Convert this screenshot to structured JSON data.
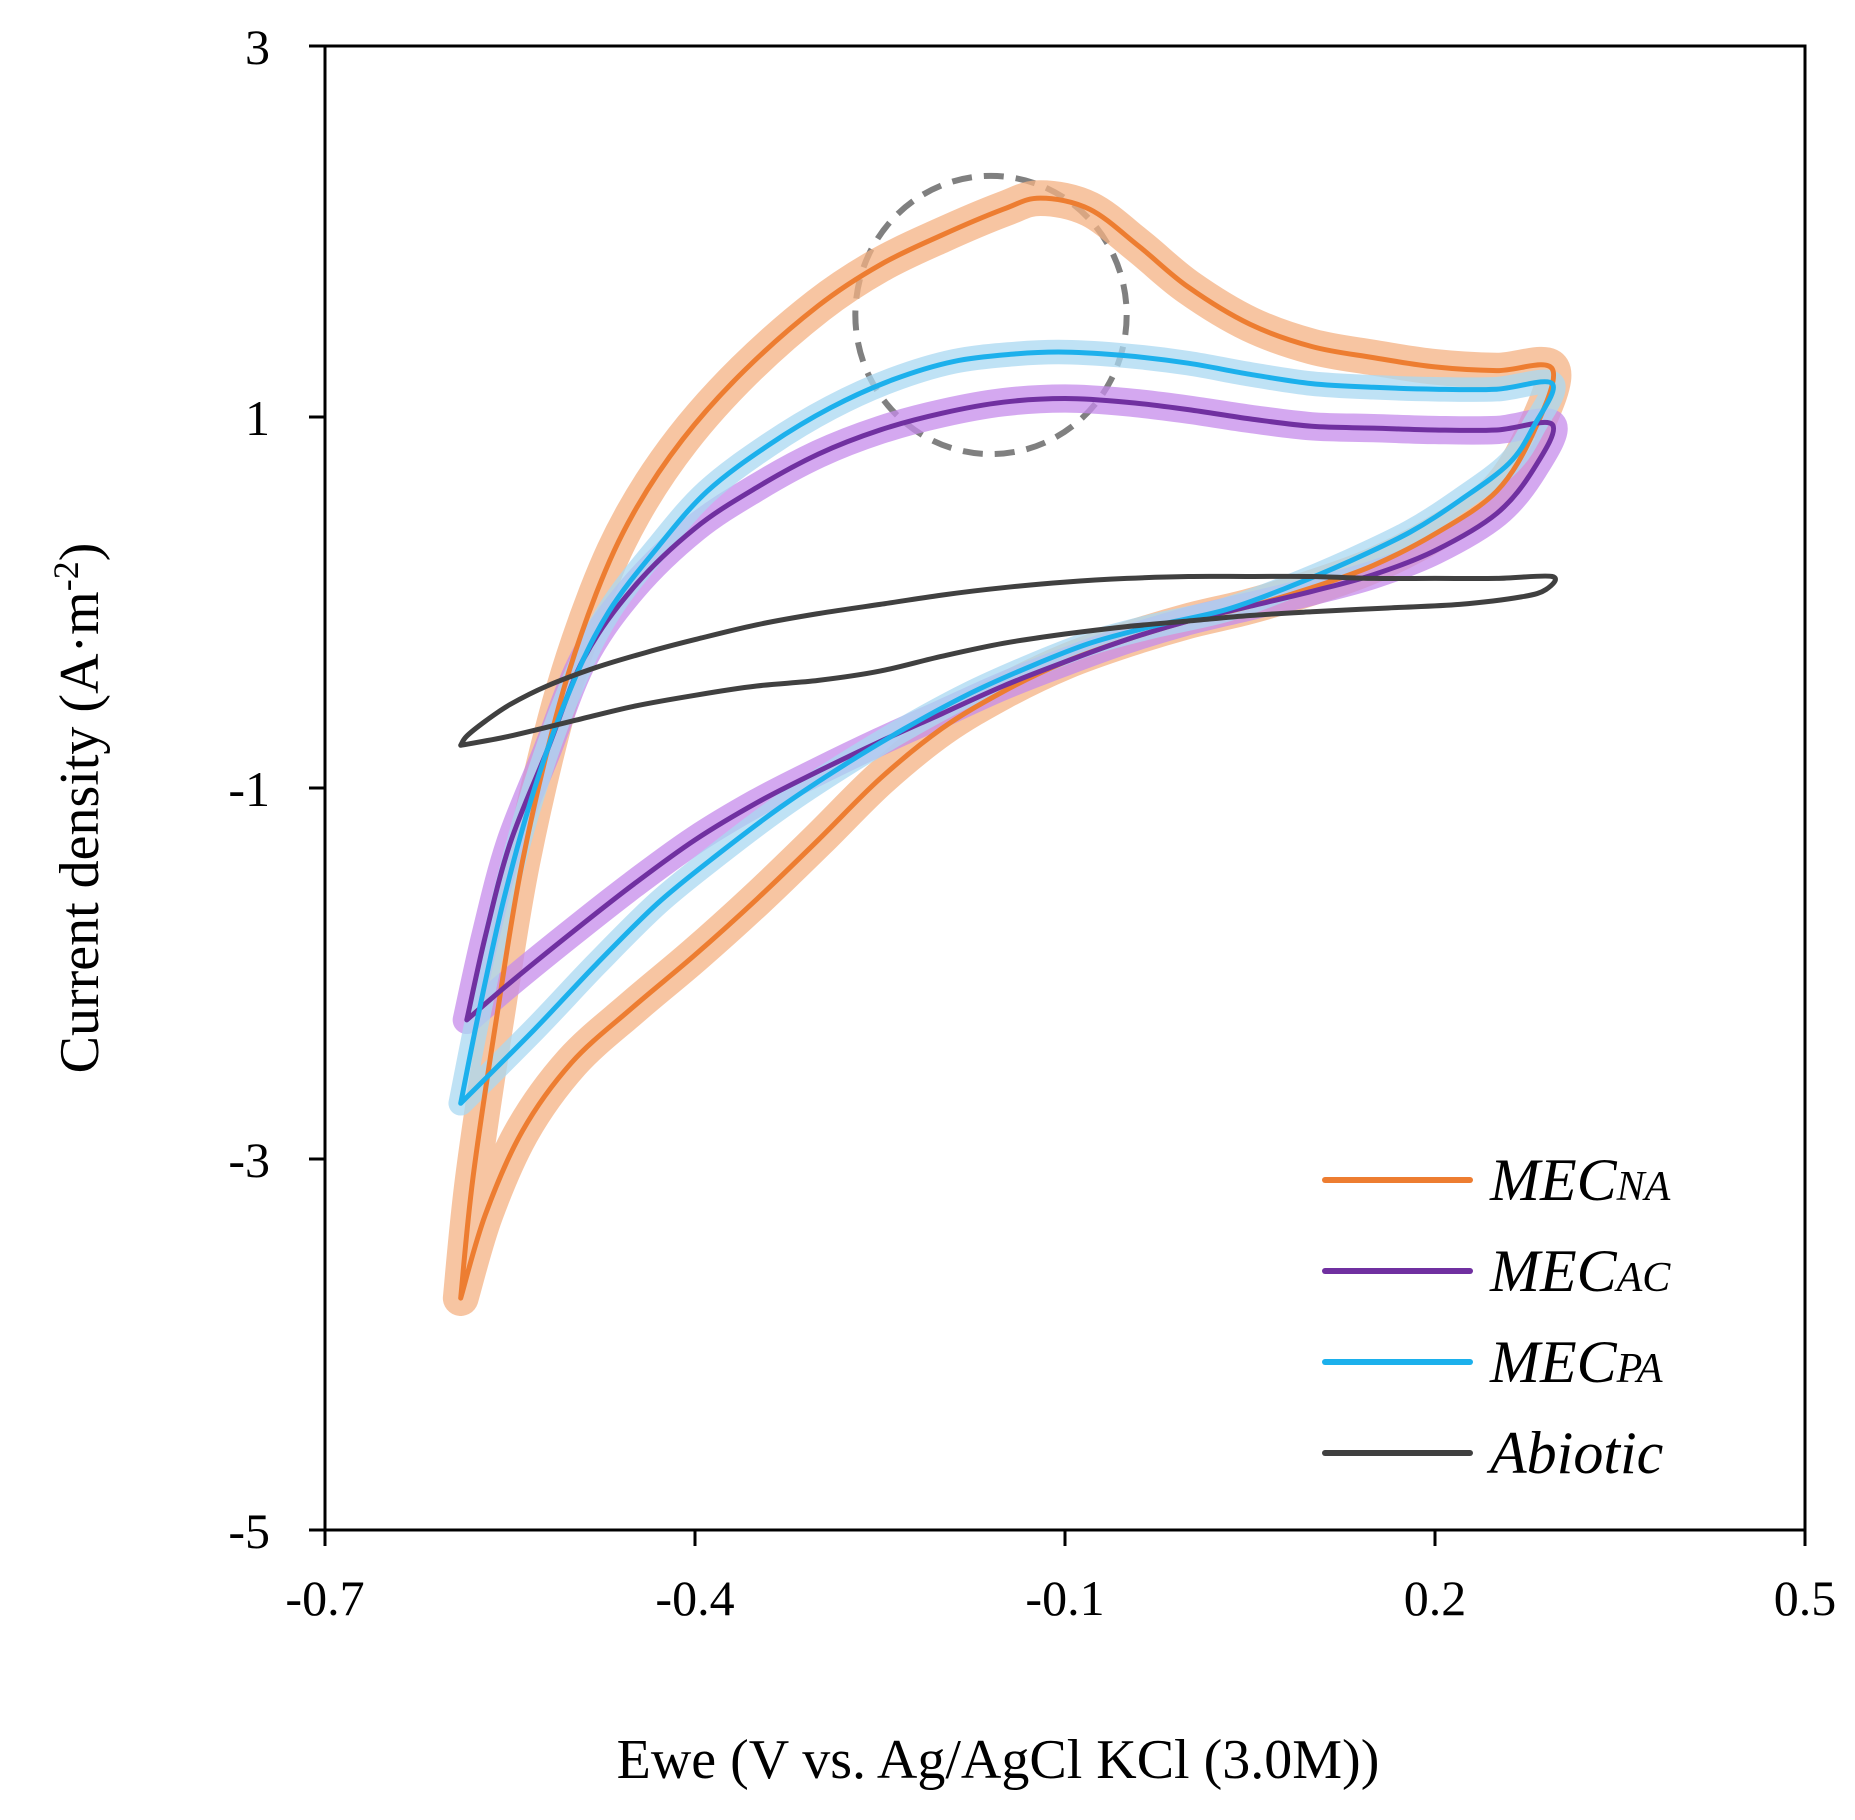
{
  "chart_data": {
    "type": "line",
    "title": "",
    "xlabel": "Ewe (V vs. Ag/AgCl KCl (3.0M))",
    "ylabel_main": "Current density (A·m",
    "ylabel_sup": "-2",
    "ylabel_close": ")",
    "xlim": [
      -0.7,
      0.5
    ],
    "ylim": [
      -5,
      3
    ],
    "xticks": [
      -0.7,
      -0.4,
      -0.1,
      0.2,
      0.5
    ],
    "xtick_labels": [
      "-0.7",
      "-0.4",
      "-0.1",
      "0.2",
      "0.5"
    ],
    "yticks": [
      3,
      1,
      -1,
      -3,
      -5
    ],
    "ytick_labels": [
      "3",
      "1",
      "-1",
      "-3",
      "-5"
    ],
    "grid": false,
    "legend_position": "bottom-right",
    "annotation": {
      "type": "dashed-circle",
      "cx": -0.16,
      "cy": 1.55,
      "rx": 0.11,
      "ry": 0.75,
      "color": "#808080"
    },
    "series": [
      {
        "name": "MECNA",
        "label_main": "MEC",
        "label_sub": "NA",
        "color": "#ED7D31",
        "band_color": "#F4B183",
        "forward": [
          [
            -0.59,
            -3.75
          ],
          [
            -0.58,
            -3.1
          ],
          [
            -0.56,
            -2.2
          ],
          [
            -0.54,
            -1.4
          ],
          [
            -0.51,
            -0.55
          ],
          [
            -0.48,
            0.05
          ],
          [
            -0.45,
            0.48
          ],
          [
            -0.41,
            0.88
          ],
          [
            -0.36,
            1.25
          ],
          [
            -0.3,
            1.6
          ],
          [
            -0.25,
            1.82
          ],
          [
            -0.2,
            1.98
          ],
          [
            -0.15,
            2.12
          ],
          [
            -0.12,
            2.18
          ],
          [
            -0.08,
            2.12
          ],
          [
            -0.04,
            1.92
          ],
          [
            0.0,
            1.7
          ],
          [
            0.05,
            1.5
          ],
          [
            0.1,
            1.38
          ],
          [
            0.15,
            1.32
          ],
          [
            0.2,
            1.27
          ],
          [
            0.25,
            1.25
          ],
          [
            0.295,
            1.26
          ]
        ],
        "reverse": [
          [
            0.295,
            1.26
          ],
          [
            0.28,
            0.92
          ],
          [
            0.25,
            0.6
          ],
          [
            0.2,
            0.37
          ],
          [
            0.15,
            0.2
          ],
          [
            0.1,
            0.08
          ],
          [
            0.05,
            -0.02
          ],
          [
            0.0,
            -0.1
          ],
          [
            -0.05,
            -0.2
          ],
          [
            -0.1,
            -0.32
          ],
          [
            -0.15,
            -0.48
          ],
          [
            -0.2,
            -0.68
          ],
          [
            -0.25,
            -0.95
          ],
          [
            -0.3,
            -1.28
          ],
          [
            -0.35,
            -1.6
          ],
          [
            -0.4,
            -1.9
          ],
          [
            -0.45,
            -2.18
          ],
          [
            -0.5,
            -2.48
          ],
          [
            -0.54,
            -2.85
          ],
          [
            -0.57,
            -3.3
          ],
          [
            -0.59,
            -3.75
          ]
        ],
        "band_width": 0.08
      },
      {
        "name": "MECAC",
        "label_main": "MEC",
        "label_sub": "AC",
        "color": "#7030A0",
        "band_color": "#C68BEB",
        "forward": [
          [
            -0.585,
            -2.25
          ],
          [
            -0.57,
            -1.8
          ],
          [
            -0.55,
            -1.3
          ],
          [
            -0.52,
            -0.8
          ],
          [
            -0.49,
            -0.3
          ],
          [
            -0.45,
            0.08
          ],
          [
            -0.4,
            0.4
          ],
          [
            -0.35,
            0.62
          ],
          [
            -0.3,
            0.8
          ],
          [
            -0.25,
            0.93
          ],
          [
            -0.2,
            1.02
          ],
          [
            -0.15,
            1.08
          ],
          [
            -0.1,
            1.1
          ],
          [
            -0.05,
            1.08
          ],
          [
            0.0,
            1.04
          ],
          [
            0.05,
            0.99
          ],
          [
            0.1,
            0.95
          ],
          [
            0.15,
            0.94
          ],
          [
            0.2,
            0.93
          ],
          [
            0.25,
            0.93
          ],
          [
            0.295,
            0.96
          ]
        ],
        "reverse": [
          [
            0.295,
            0.96
          ],
          [
            0.28,
            0.72
          ],
          [
            0.25,
            0.48
          ],
          [
            0.2,
            0.28
          ],
          [
            0.15,
            0.15
          ],
          [
            0.1,
            0.06
          ],
          [
            0.05,
            -0.02
          ],
          [
            0.0,
            -0.1
          ],
          [
            -0.05,
            -0.2
          ],
          [
            -0.1,
            -0.32
          ],
          [
            -0.15,
            -0.45
          ],
          [
            -0.2,
            -0.6
          ],
          [
            -0.25,
            -0.75
          ],
          [
            -0.3,
            -0.91
          ],
          [
            -0.35,
            -1.08
          ],
          [
            -0.4,
            -1.28
          ],
          [
            -0.45,
            -1.52
          ],
          [
            -0.5,
            -1.78
          ],
          [
            -0.55,
            -2.05
          ],
          [
            -0.585,
            -2.25
          ]
        ],
        "band_width": 0.06
      },
      {
        "name": "MECPA",
        "label_main": "MEC",
        "label_sub": "PA",
        "color": "#1CB0EC",
        "band_color": "#A9D8F2",
        "forward": [
          [
            -0.59,
            -2.7
          ],
          [
            -0.575,
            -2.2
          ],
          [
            -0.555,
            -1.6
          ],
          [
            -0.53,
            -1.0
          ],
          [
            -0.5,
            -0.45
          ],
          [
            -0.47,
            -0.05
          ],
          [
            -0.43,
            0.3
          ],
          [
            -0.39,
            0.6
          ],
          [
            -0.34,
            0.85
          ],
          [
            -0.29,
            1.05
          ],
          [
            -0.24,
            1.2
          ],
          [
            -0.19,
            1.3
          ],
          [
            -0.14,
            1.34
          ],
          [
            -0.1,
            1.35
          ],
          [
            -0.05,
            1.33
          ],
          [
            0.0,
            1.29
          ],
          [
            0.05,
            1.23
          ],
          [
            0.1,
            1.18
          ],
          [
            0.15,
            1.16
          ],
          [
            0.2,
            1.15
          ],
          [
            0.25,
            1.15
          ],
          [
            0.295,
            1.18
          ]
        ],
        "reverse": [
          [
            0.295,
            1.18
          ],
          [
            0.28,
            0.95
          ],
          [
            0.26,
            0.75
          ],
          [
            0.22,
            0.55
          ],
          [
            0.18,
            0.38
          ],
          [
            0.13,
            0.22
          ],
          [
            0.08,
            0.08
          ],
          [
            0.03,
            -0.04
          ],
          [
            -0.03,
            -0.13
          ],
          [
            -0.08,
            -0.22
          ],
          [
            -0.13,
            -0.35
          ],
          [
            -0.18,
            -0.5
          ],
          [
            -0.23,
            -0.68
          ],
          [
            -0.28,
            -0.88
          ],
          [
            -0.33,
            -1.1
          ],
          [
            -0.38,
            -1.35
          ],
          [
            -0.43,
            -1.62
          ],
          [
            -0.48,
            -1.95
          ],
          [
            -0.53,
            -2.3
          ],
          [
            -0.59,
            -2.7
          ]
        ],
        "band_width": 0.05
      },
      {
        "name": "Abiotic",
        "label_main": "Abiotic",
        "label_sub": "",
        "color": "#404040",
        "band_color": "",
        "forward": [
          [
            -0.59,
            -0.77
          ],
          [
            -0.585,
            -0.72
          ],
          [
            -0.57,
            -0.64
          ],
          [
            -0.55,
            -0.55
          ],
          [
            -0.52,
            -0.45
          ],
          [
            -0.48,
            -0.35
          ],
          [
            -0.44,
            -0.27
          ],
          [
            -0.4,
            -0.2
          ],
          [
            -0.35,
            -0.12
          ],
          [
            -0.3,
            -0.06
          ],
          [
            -0.25,
            -0.01
          ],
          [
            -0.2,
            0.04
          ],
          [
            -0.15,
            0.08
          ],
          [
            -0.1,
            0.11
          ],
          [
            -0.05,
            0.13
          ],
          [
            0.0,
            0.14
          ],
          [
            0.05,
            0.14
          ],
          [
            0.1,
            0.14
          ],
          [
            0.15,
            0.13
          ],
          [
            0.2,
            0.13
          ],
          [
            0.25,
            0.13
          ],
          [
            0.295,
            0.14
          ]
        ],
        "reverse": [
          [
            0.295,
            0.14
          ],
          [
            0.29,
            0.07
          ],
          [
            0.27,
            0.03
          ],
          [
            0.22,
            -0.01
          ],
          [
            0.16,
            -0.03
          ],
          [
            0.1,
            -0.05
          ],
          [
            0.05,
            -0.07
          ],
          [
            0.0,
            -0.1
          ],
          [
            -0.05,
            -0.13
          ],
          [
            -0.1,
            -0.17
          ],
          [
            -0.15,
            -0.22
          ],
          [
            -0.2,
            -0.29
          ],
          [
            -0.25,
            -0.37
          ],
          [
            -0.3,
            -0.42
          ],
          [
            -0.35,
            -0.45
          ],
          [
            -0.4,
            -0.5
          ],
          [
            -0.45,
            -0.56
          ],
          [
            -0.5,
            -0.64
          ],
          [
            -0.55,
            -0.72
          ],
          [
            -0.59,
            -0.77
          ]
        ],
        "band_width": 0
      }
    ]
  }
}
